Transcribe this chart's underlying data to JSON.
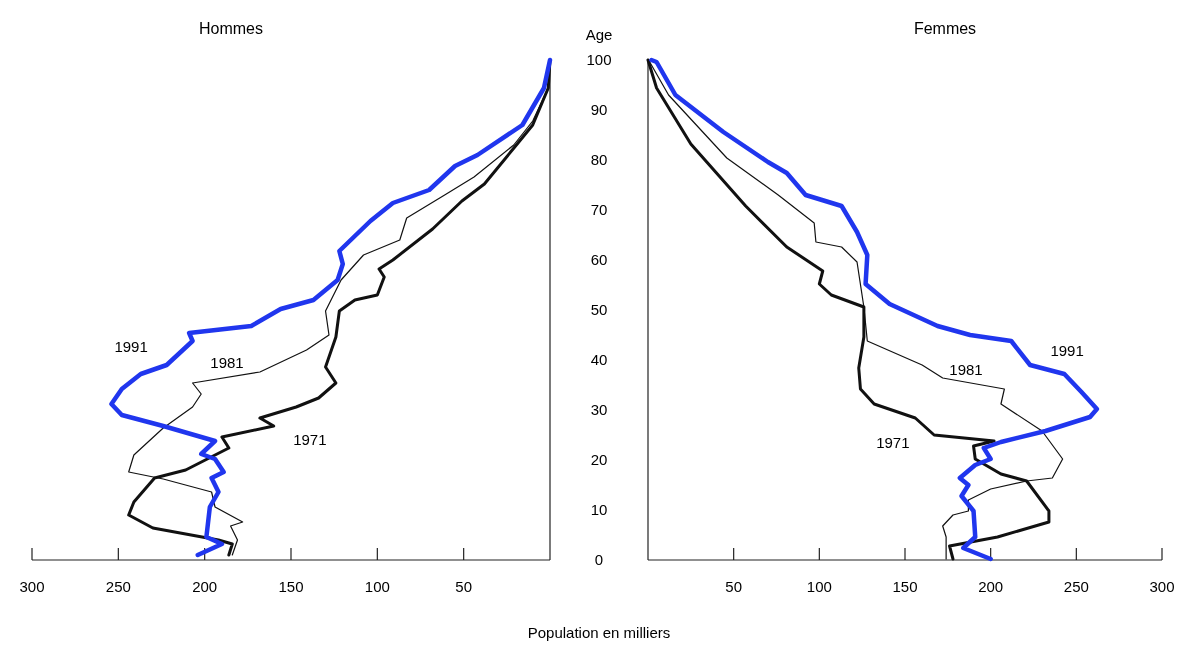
{
  "chart_data": [
    {
      "type": "line",
      "title": "Hommes",
      "xlabel": "Population en milliers",
      "xlim": [
        300,
        0
      ],
      "xticks": [
        300,
        250,
        200,
        150,
        100,
        50
      ],
      "ylim": [
        0,
        100
      ],
      "yticks": [
        0,
        10,
        20,
        30,
        40,
        50,
        60,
        70,
        80,
        90,
        100
      ],
      "tick_labels": "x",
      "grid": false,
      "series": [
        {
          "name": "1971",
          "color": "#111111",
          "x": [
            186,
            184,
            192,
            230,
            244,
            241,
            229,
            211,
            186,
            190,
            160,
            168,
            147,
            134,
            124,
            130,
            124,
            122,
            113,
            100,
            96,
            99,
            91,
            68,
            51,
            38,
            19,
            10,
            1,
            0
          ],
          "values": [
            1,
            3.2,
            4,
            6.4,
            9,
            11.6,
            16.4,
            18,
            22.4,
            24.6,
            26.8,
            28.4,
            30.6,
            32.4,
            35.4,
            38.6,
            44.6,
            49.8,
            52,
            53,
            56.6,
            58.2,
            60,
            66.2,
            71.8,
            75.2,
            83.2,
            87,
            94.4,
            100
          ]
        },
        {
          "name": "1981",
          "color": "#111111",
          "x": [
            184,
            181,
            185,
            178,
            194,
            196,
            224,
            244,
            241,
            224,
            207,
            202,
            207,
            168,
            141,
            128,
            130,
            121,
            108,
            87,
            83,
            61,
            44,
            21,
            10,
            1,
            0
          ],
          "values": [
            1,
            4,
            6.8,
            7.6,
            10.6,
            13.6,
            16.2,
            17.6,
            21,
            26.4,
            30.6,
            33.2,
            35.4,
            37.6,
            42,
            45,
            49.8,
            56,
            61,
            64,
            68.4,
            73,
            76.6,
            83,
            87.8,
            94.4,
            100
          ]
        },
        {
          "name": "1991",
          "color": "#2036ee",
          "x": [
            204,
            190,
            199,
            197,
            192,
            196,
            189,
            194,
            202,
            194,
            224,
            248,
            254,
            248,
            237,
            222,
            207,
            209,
            173,
            156,
            137,
            123,
            120,
            122,
            104,
            91,
            70,
            55,
            42,
            16,
            3.5,
            0
          ],
          "values": [
            1,
            3.2,
            4.6,
            10.6,
            13.6,
            16.4,
            17.6,
            20.2,
            21.2,
            23.8,
            26.8,
            29,
            31.2,
            34.2,
            37.2,
            39,
            43.8,
            45.4,
            46.8,
            50.2,
            52,
            56,
            59.2,
            61.8,
            67.8,
            71.4,
            74,
            78.8,
            81,
            87,
            94.4,
            100
          ]
        }
      ]
    },
    {
      "type": "line",
      "title": "Femmes",
      "ylabel": "Age",
      "xlim": [
        0,
        300
      ],
      "xticks": [
        50,
        100,
        150,
        200,
        250,
        300
      ],
      "ylim": [
        0,
        100
      ],
      "yticks": [
        0,
        10,
        20,
        30,
        40,
        50,
        60,
        70,
        80,
        90,
        100
      ],
      "grid": false,
      "series": [
        {
          "name": "1971",
          "color": "#111111",
          "x": [
            178,
            176,
            204,
            234,
            234,
            221,
            206,
            191,
            190,
            202,
            167,
            156,
            132,
            124,
            123,
            126,
            126,
            107,
            100,
            102,
            81,
            57,
            25,
            5,
            0
          ],
          "values": [
            0.2,
            2.8,
            4.6,
            7.6,
            9.8,
            15.8,
            17.2,
            20.2,
            22.8,
            23.8,
            25,
            28.4,
            31.2,
            34.2,
            38.4,
            44.6,
            50.6,
            53,
            55.2,
            57.8,
            62.6,
            70.8,
            83.2,
            94.4,
            100
          ]
        },
        {
          "name": "1981",
          "color": "#111111",
          "x": [
            174,
            174,
            172,
            178,
            187,
            187,
            200,
            221,
            236,
            242,
            230,
            206,
            208,
            172,
            160,
            128,
            126,
            122,
            113,
            98,
            97,
            76,
            46,
            12,
            1,
            0
          ],
          "values": [
            0.2,
            4.6,
            6.8,
            9,
            9.8,
            12,
            14.2,
            15.8,
            16.4,
            20.2,
            25.8,
            31.2,
            34.2,
            36.4,
            39,
            43.8,
            50.6,
            59.6,
            62.6,
            63.6,
            67.4,
            73,
            80.4,
            93,
            99.6,
            100
          ]
        },
        {
          "name": "1991",
          "color": "#2036ee",
          "x": [
            200,
            184,
            191,
            190,
            183,
            187,
            182,
            191,
            200,
            196,
            206,
            232,
            258,
            262,
            253,
            243,
            223,
            212,
            188,
            169,
            141,
            127,
            128,
            122,
            113,
            92,
            81,
            70,
            44,
            16,
            5,
            2
          ],
          "values": [
            0.2,
            2.4,
            4.6,
            9.8,
            12.8,
            15,
            16.4,
            19,
            20.2,
            22.4,
            23.6,
            25.8,
            28.6,
            30.2,
            33.6,
            37.2,
            39,
            43.8,
            45,
            46.8,
            51.2,
            55.2,
            61,
            65.6,
            70.8,
            73,
            77.4,
            79.6,
            85.6,
            93,
            99.6,
            100
          ]
        }
      ]
    }
  ]
}
